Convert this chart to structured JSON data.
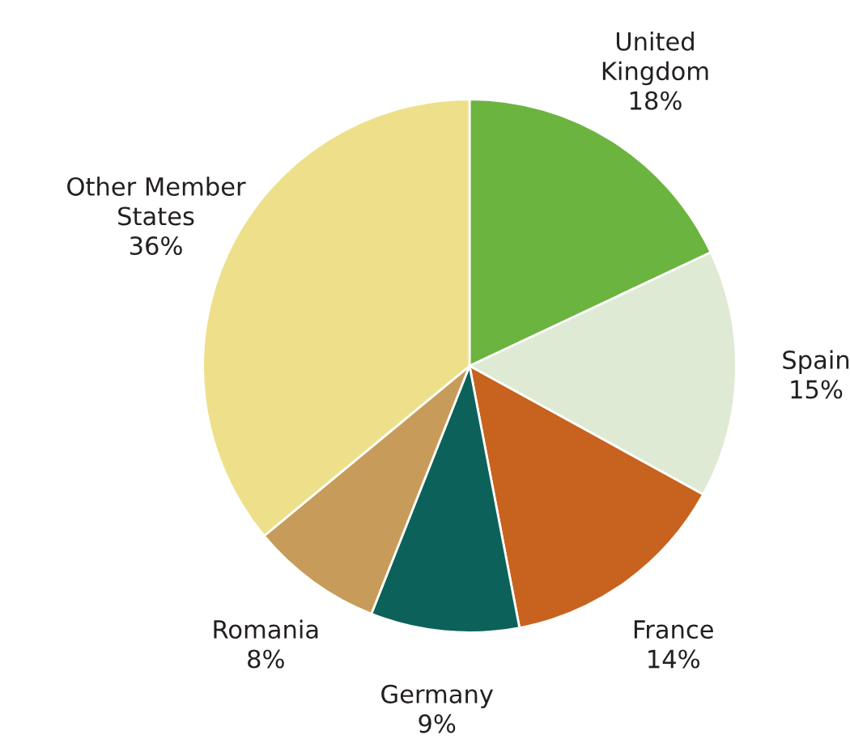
{
  "chart_data": {
    "type": "pie",
    "categories": [
      "United\nKingdom",
      "Spain",
      "France",
      "Germany",
      "Romania",
      "Other Member\nStates"
    ],
    "values": [
      18,
      15,
      14,
      9,
      8,
      36
    ],
    "value_labels": [
      "18%",
      "15%",
      "14%",
      "9%",
      "8%",
      "36%"
    ],
    "colors": [
      "#6bb43f",
      "#deead4",
      "#c8621f",
      "#0c625a",
      "#c79c5a",
      "#eee08a"
    ]
  }
}
